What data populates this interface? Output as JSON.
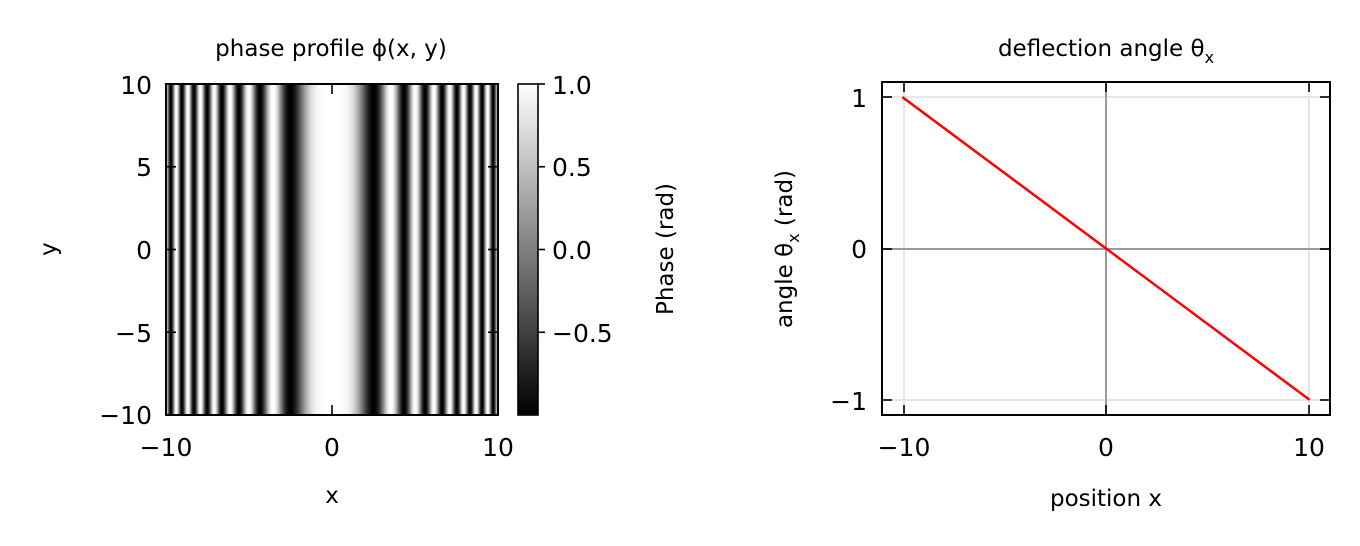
{
  "chart_data": [
    {
      "type": "heatmap",
      "title": "phase profile ϕ(x, y)",
      "xlabel": "x",
      "ylabel": "y",
      "xlim": [
        -10,
        10
      ],
      "ylim": [
        -10,
        10
      ],
      "xticks": [
        "−10",
        "0",
        "10"
      ],
      "yticks": [
        "10",
        "5",
        "0",
        "−5",
        "−10"
      ],
      "colormap": "gray",
      "value_function": "cos(x^2 / 2), independent of y",
      "colorbar": {
        "label": "Phase (rad)",
        "range": [
          -1,
          1
        ],
        "ticks": [
          "1.0",
          "0.5",
          "0.0",
          "−0.5"
        ]
      }
    },
    {
      "type": "line",
      "title": "deflection angle θ",
      "title_subscript": "x",
      "xlabel": "position x",
      "ylabel": "angle θ",
      "ylabel_subscript": "x",
      "ylabel_suffix": " (rad)",
      "xlim": [
        -11,
        11
      ],
      "ylim": [
        -1.1,
        1.1
      ],
      "xticks": [
        "−10",
        "0",
        "10"
      ],
      "yticks": [
        "1",
        "0",
        "−1"
      ],
      "grid": true,
      "series": [
        {
          "x": [
            -10,
            10
          ],
          "y": [
            1,
            -1
          ],
          "color": "#ff0000"
        }
      ]
    }
  ]
}
